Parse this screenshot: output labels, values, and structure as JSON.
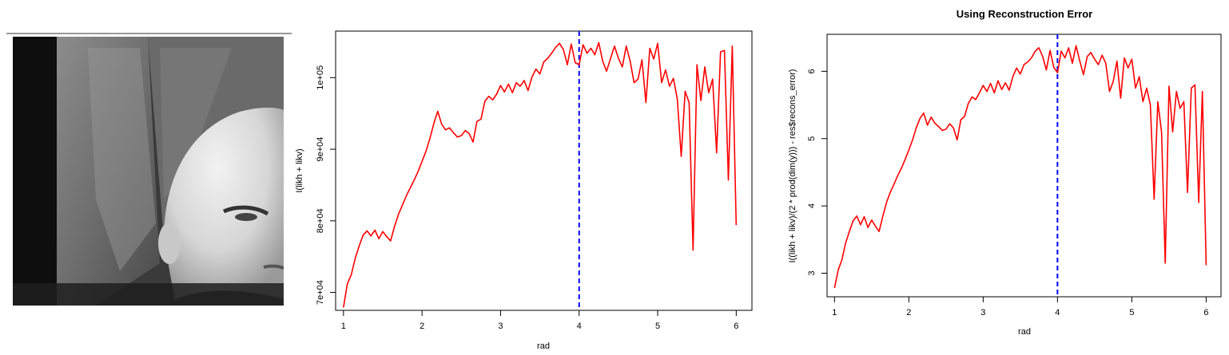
{
  "image_panel": {
    "description_colors": {
      "top_rule": "#999999"
    }
  },
  "chart_data": [
    {
      "type": "line",
      "title": "",
      "xlabel": "rad",
      "ylabel": "I(likh + likv)",
      "xlim": [
        0.9,
        6.2
      ],
      "ylim": [
        67500,
        106500
      ],
      "xticks": [
        1,
        2,
        3,
        4,
        5,
        6
      ],
      "xtick_labels": [
        "1",
        "2",
        "3",
        "4",
        "5",
        "6"
      ],
      "yticks": [
        70000,
        80000,
        90000,
        100000
      ],
      "ytick_labels": [
        "7e+04",
        "8e+04",
        "9e+04",
        "1e+05"
      ],
      "line_color": "#ff0000",
      "vline": {
        "x": 4,
        "color": "#0000ff",
        "style": "dashed"
      },
      "series": [
        {
          "x": [
            1.0,
            1.05,
            1.1,
            1.15,
            1.2,
            1.25,
            1.3,
            1.35,
            1.4,
            1.45,
            1.5,
            1.55,
            1.6,
            1.65,
            1.7,
            1.75,
            1.8,
            1.85,
            1.9,
            1.95,
            2.0,
            2.05,
            2.1,
            2.15,
            2.2,
            2.25,
            2.3,
            2.35,
            2.4,
            2.45,
            2.5,
            2.55,
            2.6,
            2.65,
            2.7,
            2.75,
            2.8,
            2.85,
            2.9,
            2.95,
            3.0,
            3.05,
            3.1,
            3.15,
            3.2,
            3.25,
            3.3,
            3.35,
            3.4,
            3.45,
            3.5,
            3.55,
            3.6,
            3.65,
            3.7,
            3.75,
            3.8,
            3.85,
            3.9,
            3.95,
            4.0,
            4.05,
            4.1,
            4.15,
            4.2,
            4.25,
            4.3,
            4.35,
            4.4,
            4.45,
            4.5,
            4.55,
            4.6,
            4.65,
            4.7,
            4.75,
            4.8,
            4.85,
            4.9,
            4.95,
            5.0,
            5.05,
            5.1,
            5.15,
            5.2,
            5.25,
            5.3,
            5.35,
            5.4,
            5.45,
            5.5,
            5.55,
            5.6,
            5.65,
            5.7,
            5.75,
            5.8,
            5.85,
            5.9,
            5.95,
            6.0
          ],
          "y": [
            67900,
            71200,
            72500,
            74800,
            76500,
            78000,
            78600,
            77900,
            78700,
            77500,
            78500,
            77800,
            77200,
            79200,
            80900,
            82200,
            83500,
            84600,
            85700,
            86900,
            88300,
            89700,
            91500,
            93600,
            95300,
            93500,
            92700,
            93000,
            92300,
            91700,
            91900,
            92600,
            92200,
            91000,
            93900,
            94200,
            96700,
            97400,
            96900,
            97700,
            98900,
            98000,
            99100,
            97900,
            99300,
            98800,
            99600,
            98200,
            100100,
            101200,
            100500,
            102200,
            102700,
            103400,
            104200,
            104800,
            103900,
            101800,
            104700,
            102100,
            101800,
            104600,
            103400,
            104100,
            103200,
            104900,
            102300,
            100900,
            102700,
            104400,
            102700,
            101500,
            104400,
            102300,
            99300,
            99800,
            102500,
            96500,
            104100,
            102600,
            104800,
            99300,
            101100,
            98800,
            99900,
            97000,
            89000,
            98100,
            96500,
            75900,
            101800,
            96800,
            101500,
            97900,
            99800,
            89500,
            103600,
            103800,
            85700,
            104400,
            79400
          ]
        }
      ]
    },
    {
      "type": "line",
      "title": "Using Reconstruction Error",
      "xlabel": "rad",
      "ylabel": "I((likh + likv)/(2 * prod(dim(y))) - res$recons_error)",
      "xlim": [
        0.9,
        6.2
      ],
      "ylim": [
        2.65,
        6.55
      ],
      "xticks": [
        1,
        2,
        3,
        4,
        5,
        6
      ],
      "xtick_labels": [
        "1",
        "2",
        "3",
        "4",
        "5",
        "6"
      ],
      "yticks": [
        3,
        4,
        5,
        6
      ],
      "ytick_labels": [
        "3",
        "4",
        "5",
        "6"
      ],
      "line_color": "#ff0000",
      "vline": {
        "x": 4,
        "color": "#0000ff",
        "style": "dashed"
      },
      "series": [
        {
          "x": [
            1.0,
            1.05,
            1.1,
            1.15,
            1.2,
            1.25,
            1.3,
            1.35,
            1.4,
            1.45,
            1.5,
            1.55,
            1.6,
            1.65,
            1.7,
            1.75,
            1.8,
            1.85,
            1.9,
            1.95,
            2.0,
            2.05,
            2.1,
            2.15,
            2.2,
            2.25,
            2.3,
            2.35,
            2.4,
            2.45,
            2.5,
            2.55,
            2.6,
            2.65,
            2.7,
            2.75,
            2.8,
            2.85,
            2.9,
            2.95,
            3.0,
            3.05,
            3.1,
            3.15,
            3.2,
            3.25,
            3.3,
            3.35,
            3.4,
            3.45,
            3.5,
            3.55,
            3.6,
            3.65,
            3.7,
            3.75,
            3.8,
            3.85,
            3.9,
            3.95,
            4.0,
            4.05,
            4.1,
            4.15,
            4.2,
            4.25,
            4.3,
            4.35,
            4.4,
            4.45,
            4.5,
            4.55,
            4.6,
            4.65,
            4.7,
            4.75,
            4.8,
            4.85,
            4.9,
            4.95,
            5.0,
            5.05,
            5.1,
            5.15,
            5.2,
            5.25,
            5.3,
            5.35,
            5.4,
            5.45,
            5.5,
            5.55,
            5.6,
            5.65,
            5.7,
            5.75,
            5.8,
            5.85,
            5.9,
            5.95,
            6.0
          ],
          "y": [
            2.78,
            3.05,
            3.2,
            3.45,
            3.62,
            3.78,
            3.85,
            3.72,
            3.84,
            3.68,
            3.79,
            3.7,
            3.62,
            3.85,
            4.05,
            4.2,
            4.32,
            4.45,
            4.56,
            4.69,
            4.83,
            4.98,
            5.16,
            5.3,
            5.38,
            5.2,
            5.32,
            5.23,
            5.18,
            5.12,
            5.14,
            5.22,
            5.16,
            4.98,
            5.28,
            5.33,
            5.52,
            5.62,
            5.58,
            5.68,
            5.79,
            5.7,
            5.82,
            5.68,
            5.86,
            5.73,
            5.83,
            5.72,
            5.92,
            6.05,
            5.96,
            6.1,
            6.14,
            6.2,
            6.3,
            6.35,
            6.22,
            6.02,
            6.31,
            6.06,
            5.98,
            6.3,
            6.2,
            6.35,
            6.12,
            6.38,
            6.15,
            5.95,
            6.22,
            6.28,
            6.18,
            6.1,
            6.24,
            6.12,
            5.7,
            5.85,
            6.15,
            5.6,
            6.2,
            6.05,
            6.18,
            5.75,
            5.92,
            5.55,
            5.75,
            5.5,
            4.1,
            5.55,
            5.1,
            3.15,
            5.78,
            5.1,
            5.7,
            5.45,
            5.55,
            4.2,
            5.75,
            5.8,
            4.05,
            5.7,
            3.12
          ]
        }
      ]
    }
  ]
}
